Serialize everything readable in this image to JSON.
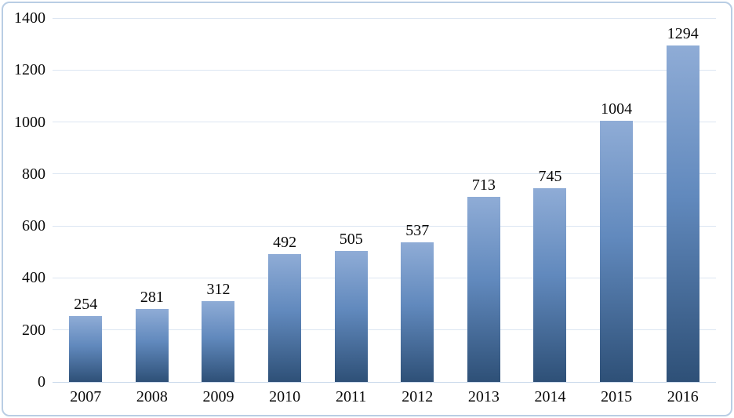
{
  "chart_data": {
    "type": "bar",
    "categories": [
      "2007",
      "2008",
      "2009",
      "2010",
      "2011",
      "2012",
      "2013",
      "2014",
      "2015",
      "2016"
    ],
    "values": [
      254,
      281,
      312,
      492,
      505,
      537,
      713,
      745,
      1004,
      1294
    ],
    "data_labels": [
      "254",
      "281",
      "312",
      "492",
      "505",
      "537",
      "713",
      "745",
      "1004",
      "1294"
    ],
    "title": "",
    "xlabel": "",
    "ylabel": "",
    "ylim": [
      0,
      1400
    ],
    "yticks": [
      0,
      200,
      400,
      600,
      800,
      1000,
      1200,
      1400
    ],
    "grid": true,
    "legend": "none",
    "colors": {
      "bar_gradient_top": "#8facd6",
      "bar_gradient_mid": "#6189bd",
      "bar_gradient_bottom": "#2e5077",
      "gridline": "#dce6f2",
      "baseline": "#c9d9eb",
      "frame_border": "#b9cde4",
      "text": "#0a0a0a",
      "background": "#ffffff"
    }
  }
}
